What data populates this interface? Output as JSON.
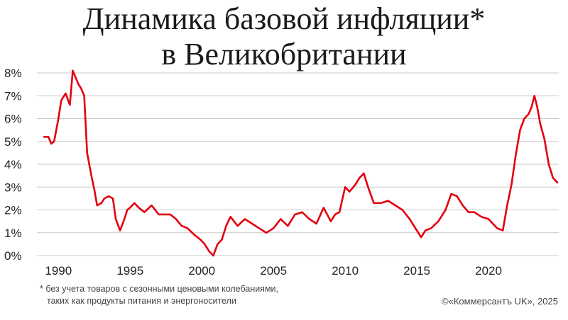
{
  "title_line1": "Динамика базовой инфляции*",
  "title_line2": "в Великобритании",
  "footnote_line1": "* без учета товаров с сезонными ценовыми колебаниями,",
  "footnote_line2": "таких как продукты питания и энергоносители",
  "source": "©«Коммерсантъ UK», 2025",
  "colors": {
    "line": "#e3000f",
    "grid": "#c8c8c8",
    "text": "#222222"
  },
  "chart_data": {
    "type": "line",
    "title": "Динамика базовой инфляции* в Великобритании",
    "xlabel": "",
    "ylabel": "",
    "xlim": [
      1988.5,
      2024.9
    ],
    "ylim": [
      0,
      8
    ],
    "grid": true,
    "x_ticks": [
      1990,
      1995,
      2000,
      2005,
      2010,
      2015,
      2020
    ],
    "x_tick_labels": [
      "1990",
      "1995",
      "2000",
      "2005",
      "2010",
      "2015",
      "2020"
    ],
    "y_ticks": [
      0,
      1,
      2,
      3,
      4,
      5,
      6,
      7,
      8
    ],
    "y_tick_labels": [
      "0%",
      "1%",
      "2%",
      "3%",
      "4%",
      "5%",
      "6%",
      "7%",
      "8%"
    ],
    "series": [
      {
        "x": [
          1989.0,
          1989.3,
          1989.5,
          1989.7,
          1990.0,
          1990.2,
          1990.5,
          1990.8,
          1991.0,
          1991.2,
          1991.4,
          1991.6,
          1991.8,
          1992.0,
          1992.3,
          1992.5,
          1992.7,
          1993.0,
          1993.2,
          1993.5,
          1993.8,
          1994.0,
          1994.3,
          1994.6,
          1994.8,
          1995.0,
          1995.3,
          1995.6,
          1996.0,
          1996.5,
          1997.0,
          1997.4,
          1997.8,
          1998.2,
          1998.6,
          1999.0,
          1999.5,
          1999.9,
          2000.2,
          2000.5,
          2000.8,
          2001.1,
          2001.4,
          2001.7,
          2002.0,
          2002.5,
          2003.0,
          2003.5,
          2004.0,
          2004.5,
          2005.0,
          2005.5,
          2006.0,
          2006.5,
          2007.0,
          2007.5,
          2008.0,
          2008.5,
          2009.0,
          2009.3,
          2009.6,
          2010.0,
          2010.3,
          2010.7,
          2011.0,
          2011.3,
          2011.6,
          2012.0,
          2012.5,
          2013.0,
          2013.5,
          2014.0,
          2014.5,
          2015.0,
          2015.3,
          2015.6,
          2016.0,
          2016.5,
          2017.0,
          2017.4,
          2017.8,
          2018.2,
          2018.6,
          2019.0,
          2019.5,
          2020.0,
          2020.3,
          2020.6,
          2021.0,
          2021.3,
          2021.6,
          2021.9,
          2022.2,
          2022.5,
          2022.8,
          2023.0,
          2023.2,
          2023.4,
          2023.6,
          2023.9,
          2024.2,
          2024.5,
          2024.8
        ],
        "values": [
          5.2,
          5.2,
          4.9,
          5.0,
          6.0,
          6.8,
          7.1,
          6.6,
          8.1,
          7.8,
          7.5,
          7.3,
          7.0,
          4.5,
          3.5,
          2.9,
          2.2,
          2.3,
          2.5,
          2.6,
          2.5,
          1.6,
          1.1,
          1.6,
          2.0,
          2.1,
          2.3,
          2.1,
          1.9,
          2.2,
          1.8,
          1.8,
          1.8,
          1.6,
          1.3,
          1.2,
          0.9,
          0.7,
          0.5,
          0.2,
          0.0,
          0.5,
          0.7,
          1.3,
          1.7,
          1.3,
          1.6,
          1.4,
          1.2,
          1.0,
          1.2,
          1.6,
          1.3,
          1.8,
          1.9,
          1.6,
          1.4,
          2.1,
          1.5,
          1.8,
          1.9,
          3.0,
          2.8,
          3.1,
          3.4,
          3.6,
          3.0,
          2.3,
          2.3,
          2.4,
          2.2,
          2.0,
          1.6,
          1.1,
          0.8,
          1.1,
          1.2,
          1.5,
          2.0,
          2.7,
          2.6,
          2.2,
          1.9,
          1.9,
          1.7,
          1.6,
          1.4,
          1.2,
          1.1,
          2.2,
          3.1,
          4.4,
          5.5,
          6.0,
          6.2,
          6.5,
          7.0,
          6.5,
          5.8,
          5.1,
          4.0,
          3.4,
          3.2
        ]
      }
    ]
  }
}
